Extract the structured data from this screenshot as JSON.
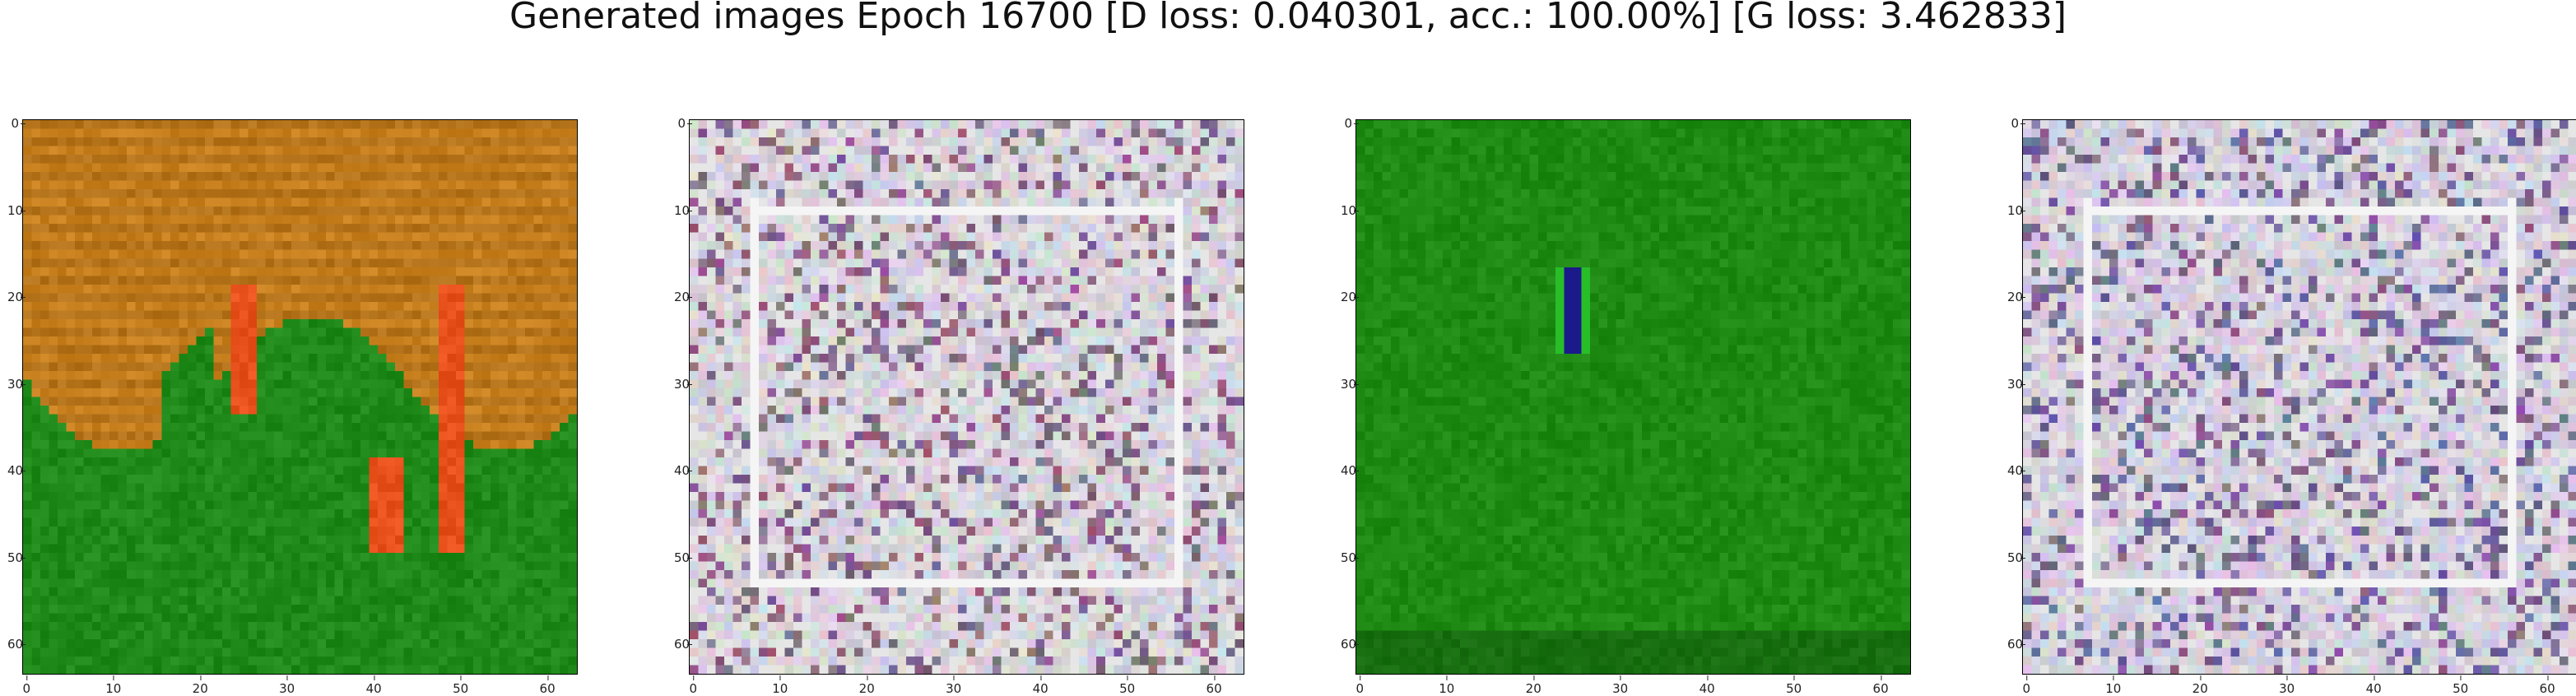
{
  "figure": {
    "title": "Generated images Epoch 16700 [D loss: 0.040301, acc.: 100.00%] [G loss: 3.462833]"
  },
  "axes": {
    "ticks": [
      "0",
      "10",
      "20",
      "30",
      "40",
      "50",
      "60"
    ]
  },
  "panels": [
    {
      "style": "landscape",
      "colors": {
        "sky": "#c8801e",
        "ground": "#1f8a1a",
        "accent": "#e8501c"
      }
    },
    {
      "style": "noise",
      "colors": {
        "base": "#d8d4dc",
        "accent": "#6a4a68"
      }
    },
    {
      "style": "green",
      "colors": {
        "base": "#1e8a14",
        "accent": "#1a1a8a"
      }
    },
    {
      "style": "noise",
      "colors": {
        "base": "#d6d0de",
        "accent": "#5a4a78"
      }
    }
  ]
}
